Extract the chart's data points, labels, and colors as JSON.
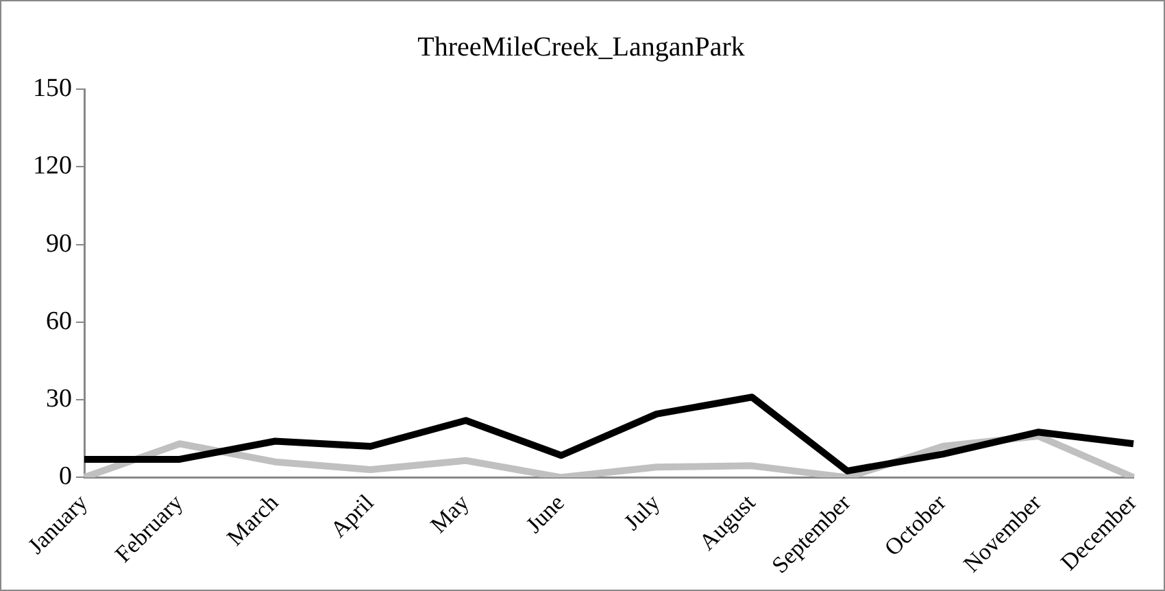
{
  "chart_data": {
    "type": "line",
    "title": "ThreeMileCreek_LanganPark",
    "categories": [
      "January",
      "February",
      "March",
      "April",
      "May",
      "June",
      "July",
      "August",
      "September",
      "October",
      "November",
      "December"
    ],
    "series": [
      {
        "color": "#c0c0c0",
        "values": [
          0,
          13,
          6,
          3,
          6.5,
          0,
          4,
          4.5,
          0,
          12,
          16,
          0
        ]
      },
      {
        "color": "#000000",
        "values": [
          7,
          7,
          14,
          12,
          22,
          8.5,
          24.5,
          31,
          2.5,
          9,
          17.5,
          13
        ]
      }
    ],
    "ylim": [
      0,
      150
    ],
    "yticks": [
      0,
      30,
      60,
      90,
      120,
      150
    ],
    "grid": false,
    "legend": false,
    "marker": "none",
    "line_style": "solid"
  }
}
